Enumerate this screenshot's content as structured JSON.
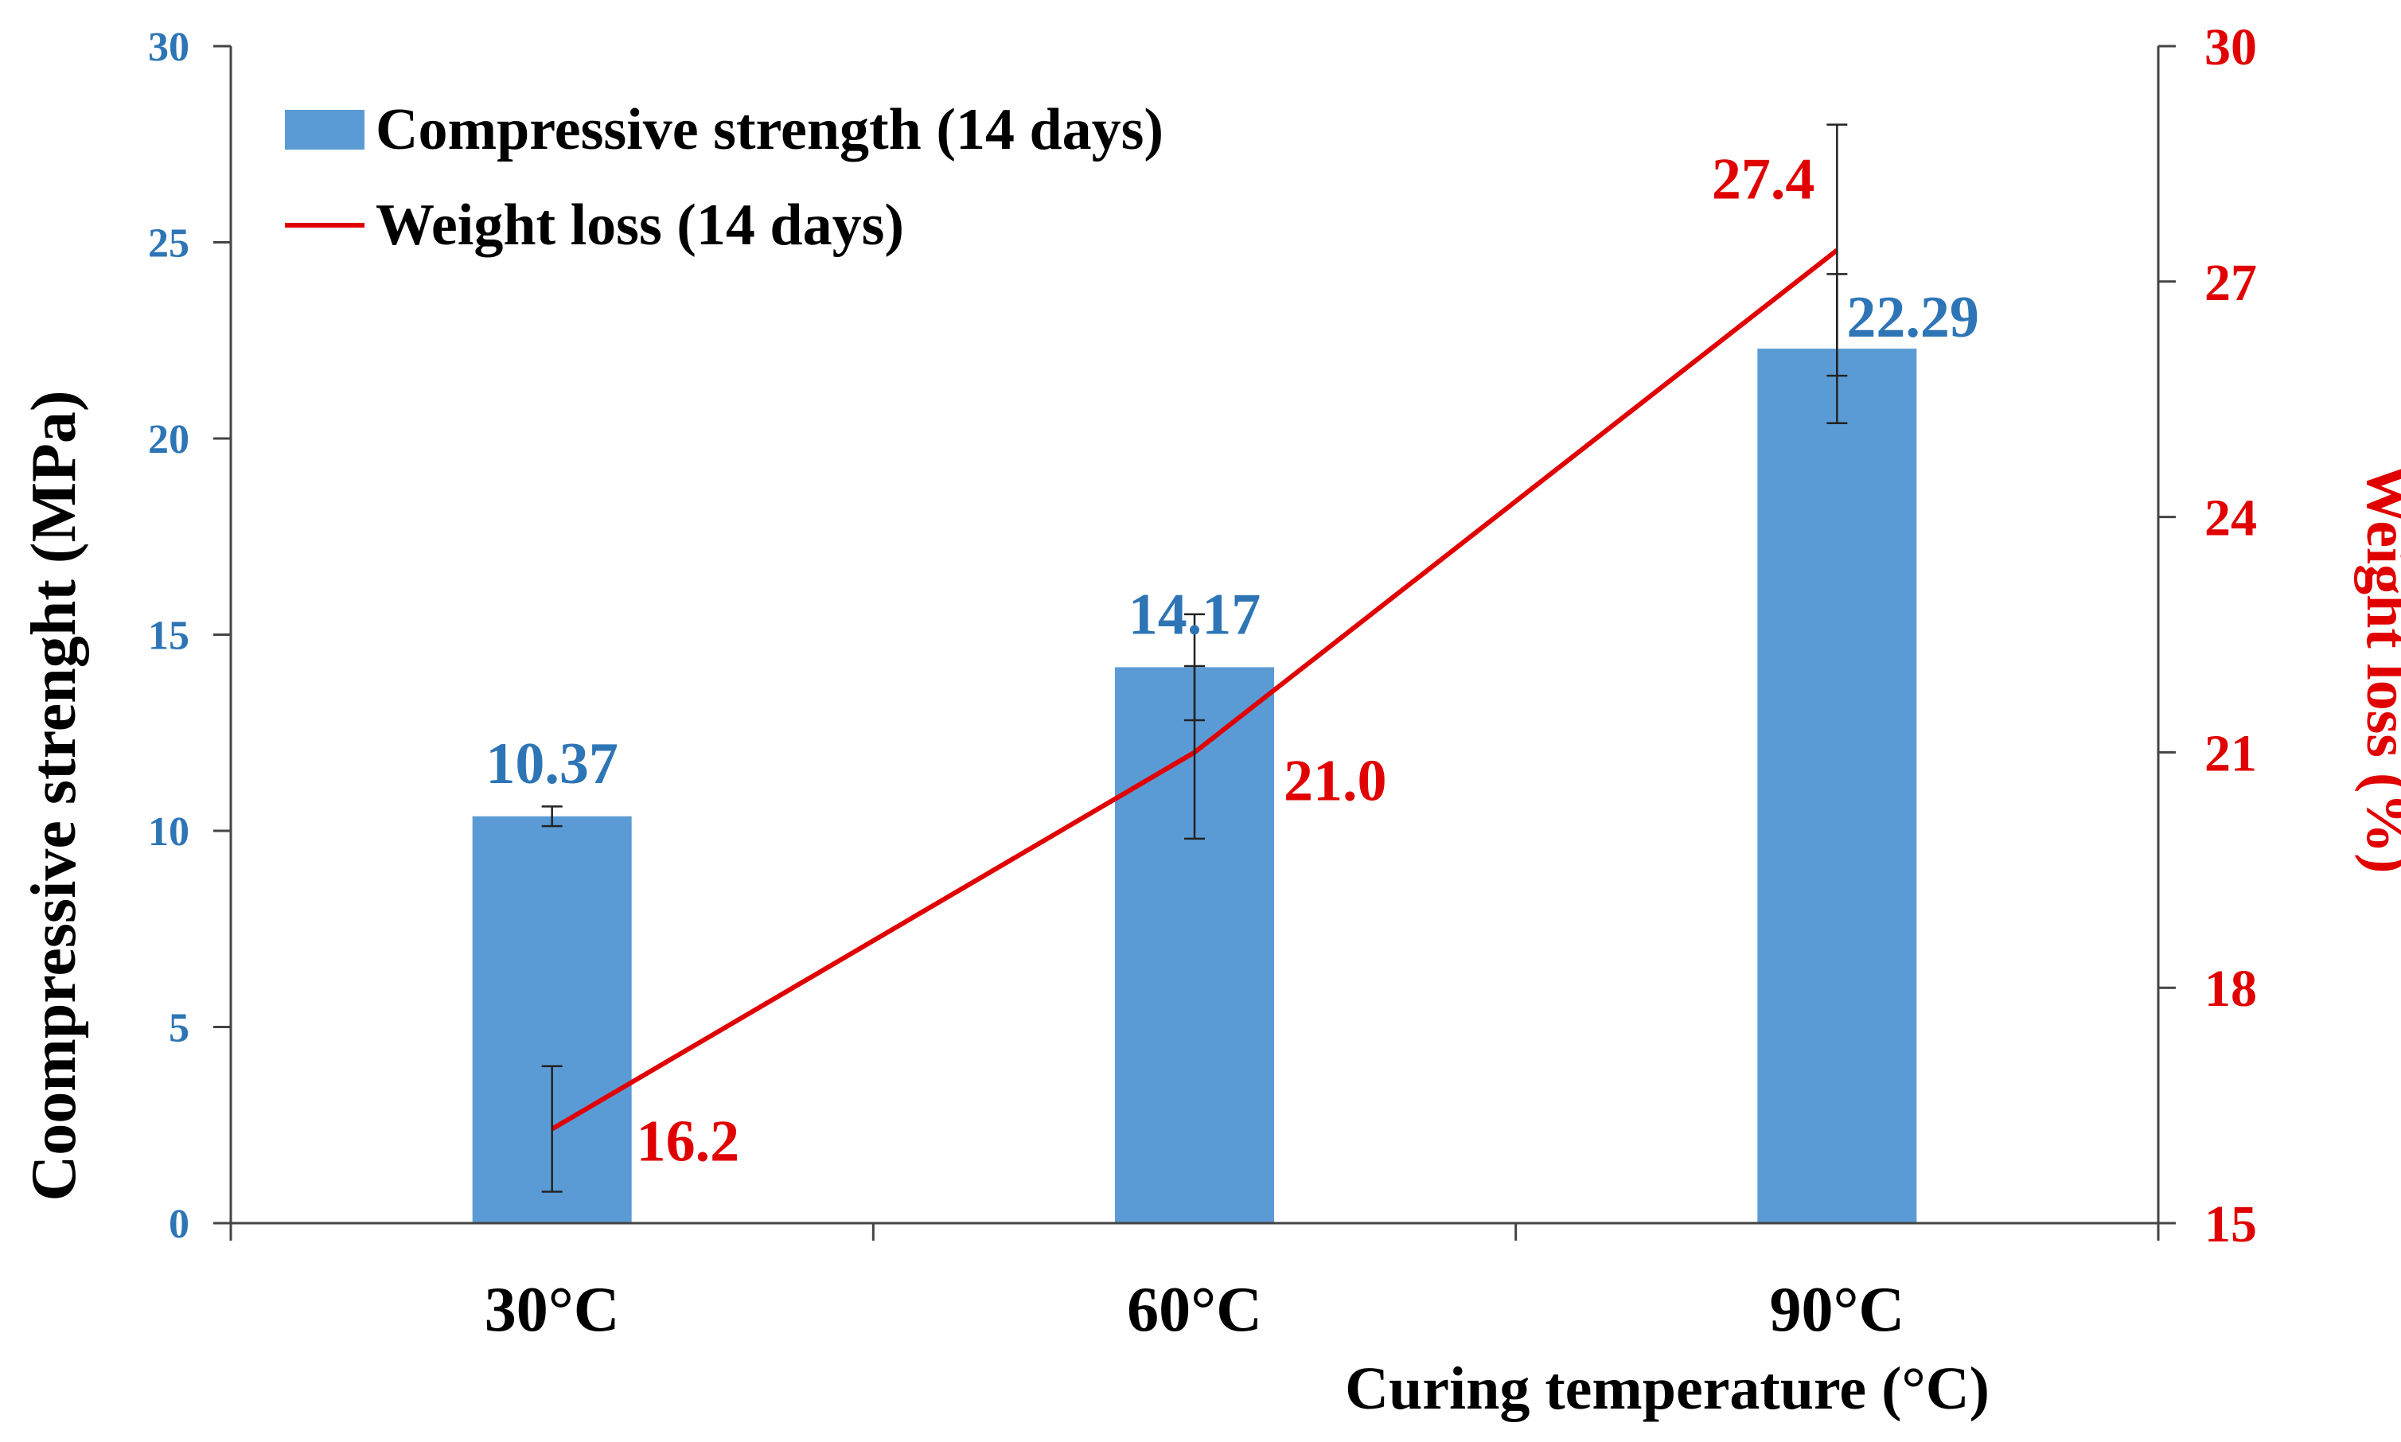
{
  "chart_data": {
    "type": "bar",
    "categories": [
      "30°C",
      "60°C",
      "90°C"
    ],
    "xlabel": "Curing temperature (°C)",
    "ylabel": "Coompressive strenght (MPa)",
    "y2label": "Weight loss (%)",
    "ylim": [
      0,
      30
    ],
    "y2lim": [
      15,
      30
    ],
    "yticks": [
      "0",
      "5",
      "10",
      "15",
      "20",
      "25",
      "30"
    ],
    "y2ticks": [
      "15",
      "18",
      "21",
      "24",
      "27",
      "30"
    ],
    "legend": "top-left",
    "grid": false,
    "series": [
      {
        "name": "Compressive strength (14 days)",
        "type": "bar",
        "axis": "left",
        "color": "#5B9BD5",
        "label_color": "#2E75B6",
        "values": [
          10.37,
          14.17,
          22.29
        ],
        "labels": [
          "10.37",
          "14.17",
          "22.29"
        ],
        "errors": [
          0.25,
          1.35,
          1.9
        ]
      },
      {
        "name": "Weight loss (14 days)",
        "type": "line",
        "axis": "right",
        "color": "#E00000",
        "values": [
          16.2,
          21.0,
          27.4
        ],
        "labels": [
          "16.2",
          "21.0",
          "27.4"
        ],
        "errors": [
          0.8,
          1.1,
          1.6
        ]
      }
    ]
  }
}
